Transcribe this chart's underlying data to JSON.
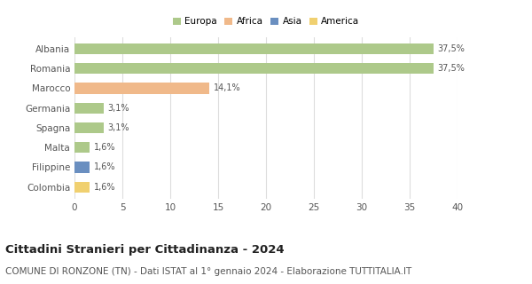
{
  "categories": [
    "Albania",
    "Romania",
    "Marocco",
    "Germania",
    "Spagna",
    "Malta",
    "Filippine",
    "Colombia"
  ],
  "values": [
    37.5,
    37.5,
    14.1,
    3.1,
    3.1,
    1.6,
    1.6,
    1.6
  ],
  "labels": [
    "37,5%",
    "37,5%",
    "14,1%",
    "3,1%",
    "3,1%",
    "1,6%",
    "1,6%",
    "1,6%"
  ],
  "colors": [
    "#adc98a",
    "#adc98a",
    "#f0b98a",
    "#adc98a",
    "#adc98a",
    "#adc98a",
    "#6a8fc0",
    "#f0d070"
  ],
  "legend_labels": [
    "Europa",
    "Africa",
    "Asia",
    "America"
  ],
  "legend_colors": [
    "#adc98a",
    "#f0b98a",
    "#6a8fc0",
    "#f0d070"
  ],
  "xlim": [
    0,
    40
  ],
  "xticks": [
    0,
    5,
    10,
    15,
    20,
    25,
    30,
    35,
    40
  ],
  "title": "Cittadini Stranieri per Cittadinanza - 2024",
  "subtitle": "COMUNE DI RONZONE (TN) - Dati ISTAT al 1° gennaio 2024 - Elaborazione TUTTITALIA.IT",
  "title_fontsize": 9.5,
  "subtitle_fontsize": 7.5,
  "bar_height": 0.55,
  "background_color": "#ffffff",
  "grid_color": "#dddddd",
  "label_fontsize": 7,
  "tick_fontsize": 7.5
}
